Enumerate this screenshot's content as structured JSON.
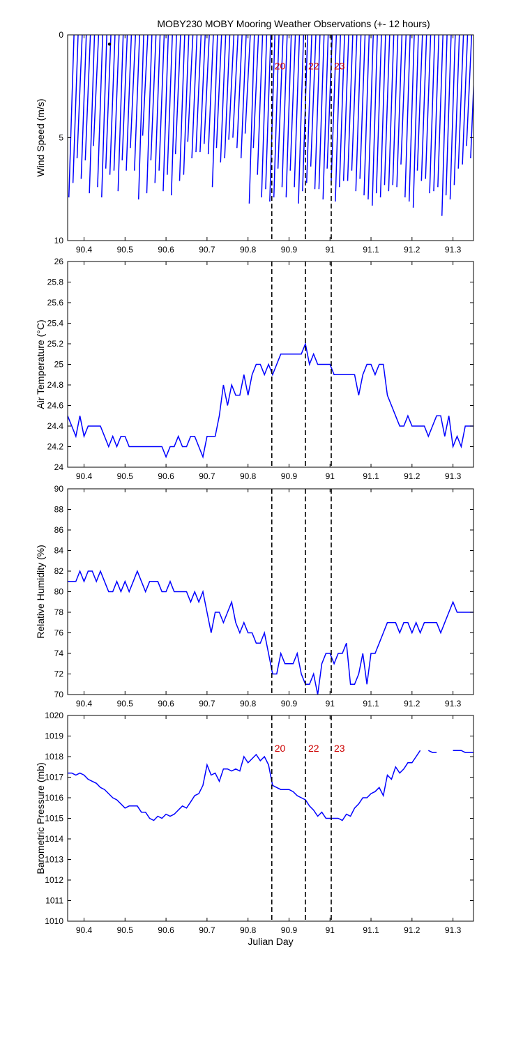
{
  "title": "MOBY230 MOBY Mooring Weather Observations (+- 12 hours)",
  "colors": {
    "series": "#0000ff",
    "marker_label": "#cc0000",
    "axes": "#000000",
    "background": "#ffffff"
  },
  "chart_data": [
    {
      "type": "quiver",
      "id": "wind",
      "ylabel": "Wind Speed (m/s)",
      "xlim": [
        90.36,
        91.35
      ],
      "ylim": [
        0,
        10
      ],
      "y_inverted": true,
      "xticks": [
        90.4,
        90.5,
        90.6,
        90.7,
        90.8,
        90.9,
        91,
        91.1,
        91.2,
        91.3
      ],
      "xtick_labels": [
        "90.4",
        "90.5",
        "90.6",
        "90.7",
        "90.8",
        "90.9",
        "91",
        "91.1",
        "91.2",
        "91.3"
      ],
      "yticks": [
        0,
        5,
        10
      ],
      "ytick_labels": [
        "0",
        "5",
        "10"
      ],
      "marker_lines": [
        90.858,
        90.94,
        91.003
      ],
      "marker_labels": [
        "20",
        "22",
        "23"
      ],
      "marker_label_y": 1.5,
      "vectors": [
        [
          90.363,
          7.9
        ],
        [
          90.373,
          7.2
        ],
        [
          90.383,
          6.0
        ],
        [
          90.393,
          7.0
        ],
        [
          90.403,
          6.1
        ],
        [
          90.413,
          7.7
        ],
        [
          90.423,
          5.4
        ],
        [
          90.433,
          7.4
        ],
        [
          90.443,
          7.9
        ],
        [
          90.453,
          6.5
        ],
        [
          90.463,
          6.8
        ],
        [
          90.473,
          6.6
        ],
        [
          90.483,
          7.6
        ],
        [
          90.493,
          6.1
        ],
        [
          90.503,
          6.6
        ],
        [
          90.513,
          5.5
        ],
        [
          90.523,
          6.6
        ],
        [
          90.533,
          8.0
        ],
        [
          90.543,
          4.9
        ],
        [
          90.553,
          7.7
        ],
        [
          90.563,
          6.1
        ],
        [
          90.573,
          7.2
        ],
        [
          90.583,
          6.6
        ],
        [
          90.593,
          7.6
        ],
        [
          90.603,
          6.8
        ],
        [
          90.613,
          7.8
        ],
        [
          90.623,
          5.8
        ],
        [
          90.633,
          7.1
        ],
        [
          90.643,
          6.8
        ],
        [
          90.653,
          5.2
        ],
        [
          90.663,
          6.0
        ],
        [
          90.673,
          5.7
        ],
        [
          90.683,
          5.7
        ],
        [
          90.693,
          5.3
        ],
        [
          90.703,
          5.8
        ],
        [
          90.713,
          7.4
        ],
        [
          90.723,
          5.5
        ],
        [
          90.733,
          6.2
        ],
        [
          90.743,
          6.0
        ],
        [
          90.753,
          5.1
        ],
        [
          90.763,
          5.0
        ],
        [
          90.773,
          5.5
        ],
        [
          90.783,
          6.0
        ],
        [
          90.793,
          4.8
        ],
        [
          90.803,
          8.2
        ],
        [
          90.813,
          5.5
        ],
        [
          90.823,
          6.8
        ],
        [
          90.833,
          7.9
        ],
        [
          90.843,
          7.5
        ],
        [
          90.853,
          8.1
        ],
        [
          90.863,
          7.9
        ],
        [
          90.873,
          6.5
        ],
        [
          90.883,
          7.4
        ],
        [
          90.893,
          7.9
        ],
        [
          90.903,
          6.6
        ],
        [
          90.913,
          7.4
        ],
        [
          90.923,
          8.2
        ],
        [
          90.933,
          7.6
        ],
        [
          90.943,
          7.2
        ],
        [
          90.953,
          6.4
        ],
        [
          90.963,
          7.5
        ],
        [
          90.973,
          7.5
        ],
        [
          90.983,
          8.0
        ],
        [
          90.993,
          6.5
        ],
        [
          91.003,
          7.1
        ],
        [
          91.013,
          8.1
        ],
        [
          91.023,
          7.4
        ],
        [
          91.033,
          7.1
        ],
        [
          91.043,
          7.1
        ],
        [
          91.053,
          6.6
        ],
        [
          91.063,
          7.6
        ],
        [
          91.073,
          7.0
        ],
        [
          91.083,
          7.8
        ],
        [
          91.093,
          8.0
        ],
        [
          91.103,
          8.3
        ],
        [
          91.113,
          7.7
        ],
        [
          91.123,
          7.9
        ],
        [
          91.133,
          7.3
        ],
        [
          91.143,
          7.6
        ],
        [
          91.153,
          7.3
        ],
        [
          91.163,
          7.4
        ],
        [
          91.173,
          6.3
        ],
        [
          91.183,
          7.9
        ],
        [
          91.193,
          8.1
        ],
        [
          91.203,
          8.4
        ],
        [
          91.213,
          6.6
        ],
        [
          91.223,
          7.1
        ],
        [
          91.233,
          7.0
        ],
        [
          91.243,
          7.7
        ],
        [
          91.253,
          7.6
        ],
        [
          91.263,
          7.4
        ],
        [
          91.273,
          8.8
        ],
        [
          91.283,
          7.8
        ],
        [
          91.293,
          8.0
        ],
        [
          91.303,
          7.3
        ],
        [
          91.313,
          6.5
        ],
        [
          91.323,
          6.3
        ],
        [
          91.333,
          5.4
        ],
        [
          91.343,
          6.0
        ]
      ],
      "vector_dx_days": 0.0125
    },
    {
      "type": "line",
      "id": "airtemp",
      "ylabel": "Air Temperature (°C)",
      "xlim": [
        90.36,
        91.35
      ],
      "ylim": [
        24,
        26
      ],
      "xticks": [
        90.4,
        90.5,
        90.6,
        90.7,
        90.8,
        90.9,
        91,
        91.1,
        91.2,
        91.3
      ],
      "xtick_labels": [
        "90.4",
        "90.5",
        "90.6",
        "90.7",
        "90.8",
        "90.9",
        "91",
        "91.1",
        "91.2",
        "91.3"
      ],
      "yticks": [
        24,
        24.2,
        24.4,
        24.6,
        24.8,
        25,
        25.2,
        25.4,
        25.6,
        25.8,
        26
      ],
      "ytick_labels": [
        "24",
        "24.2",
        "24.4",
        "24.6",
        "24.8",
        "25",
        "25.2",
        "25.4",
        "25.6",
        "25.8",
        "26"
      ],
      "marker_lines": [
        90.858,
        90.94,
        91.003
      ],
      "x": [
        90.36,
        90.37,
        90.38,
        90.39,
        90.4,
        90.41,
        90.42,
        90.43,
        90.44,
        90.45,
        90.46,
        90.47,
        90.48,
        90.49,
        90.5,
        90.51,
        90.52,
        90.53,
        90.54,
        90.55,
        90.56,
        90.57,
        90.58,
        90.59,
        90.6,
        90.61,
        90.62,
        90.63,
        90.64,
        90.65,
        90.66,
        90.67,
        90.68,
        90.69,
        90.7,
        90.71,
        90.72,
        90.73,
        90.74,
        90.75,
        90.76,
        90.77,
        90.78,
        90.79,
        90.8,
        90.81,
        90.82,
        90.83,
        90.84,
        90.85,
        90.86,
        90.87,
        90.88,
        90.89,
        90.9,
        90.91,
        90.92,
        90.93,
        90.94,
        90.95,
        90.96,
        90.97,
        90.98,
        90.99,
        91.0,
        91.01,
        91.02,
        91.03,
        91.04,
        91.05,
        91.06,
        91.07,
        91.08,
        91.09,
        91.1,
        91.11,
        91.12,
        91.13,
        91.14,
        91.15,
        91.16,
        91.17,
        91.18,
        91.19,
        91.2,
        91.21,
        91.22,
        91.23,
        91.24,
        91.25,
        91.26,
        91.27,
        91.28,
        91.29,
        91.3,
        91.31,
        91.32,
        91.33,
        91.34,
        91.35
      ],
      "y": [
        24.5,
        24.4,
        24.3,
        24.5,
        24.3,
        24.4,
        24.4,
        24.4,
        24.4,
        24.3,
        24.2,
        24.3,
        24.2,
        24.3,
        24.3,
        24.2,
        24.2,
        24.2,
        24.2,
        24.2,
        24.2,
        24.2,
        24.2,
        24.2,
        24.1,
        24.2,
        24.2,
        24.3,
        24.2,
        24.2,
        24.3,
        24.3,
        24.2,
        24.1,
        24.3,
        24.3,
        24.3,
        24.5,
        24.8,
        24.6,
        24.8,
        24.7,
        24.7,
        24.9,
        24.7,
        24.9,
        25.0,
        25.0,
        24.9,
        25.0,
        24.9,
        25.0,
        25.1,
        25.1,
        25.1,
        25.1,
        25.1,
        25.1,
        25.2,
        25.0,
        25.1,
        25.0,
        25.0,
        25.0,
        25.0,
        24.9,
        24.9,
        24.9,
        24.9,
        24.9,
        24.9,
        24.7,
        24.9,
        25.0,
        25.0,
        24.9,
        25.0,
        25.0,
        24.7,
        24.6,
        24.5,
        24.4,
        24.4,
        24.5,
        24.4,
        24.4,
        24.4,
        24.4,
        24.3,
        24.4,
        24.5,
        24.5,
        24.3,
        24.5,
        24.2,
        24.3,
        24.2,
        24.4,
        24.4,
        24.4
      ]
    },
    {
      "type": "line",
      "id": "humidity",
      "ylabel": "Relative Humidity (%)",
      "xlim": [
        90.36,
        91.35
      ],
      "ylim": [
        70,
        90
      ],
      "xticks": [
        90.4,
        90.5,
        90.6,
        90.7,
        90.8,
        90.9,
        91,
        91.1,
        91.2,
        91.3
      ],
      "xtick_labels": [
        "90.4",
        "90.5",
        "90.6",
        "90.7",
        "90.8",
        "90.9",
        "91",
        "91.1",
        "91.2",
        "91.3"
      ],
      "yticks": [
        70,
        72,
        74,
        76,
        78,
        80,
        82,
        84,
        86,
        88,
        90
      ],
      "ytick_labels": [
        "70",
        "72",
        "74",
        "76",
        "78",
        "80",
        "82",
        "84",
        "86",
        "88",
        "90"
      ],
      "marker_lines": [
        90.858,
        90.94,
        91.003
      ],
      "x": [
        90.36,
        90.37,
        90.38,
        90.39,
        90.4,
        90.41,
        90.42,
        90.43,
        90.44,
        90.45,
        90.46,
        90.47,
        90.48,
        90.49,
        90.5,
        90.51,
        90.52,
        90.53,
        90.54,
        90.55,
        90.56,
        90.57,
        90.58,
        90.59,
        90.6,
        90.61,
        90.62,
        90.63,
        90.64,
        90.65,
        90.66,
        90.67,
        90.68,
        90.69,
        90.7,
        90.71,
        90.72,
        90.73,
        90.74,
        90.75,
        90.76,
        90.77,
        90.78,
        90.79,
        90.8,
        90.81,
        90.82,
        90.83,
        90.84,
        90.85,
        90.86,
        90.87,
        90.88,
        90.89,
        90.9,
        90.91,
        90.92,
        90.93,
        90.94,
        90.95,
        90.96,
        90.97,
        90.98,
        90.99,
        91.0,
        91.01,
        91.02,
        91.03,
        91.04,
        91.05,
        91.06,
        91.07,
        91.08,
        91.09,
        91.1,
        91.11,
        91.12,
        91.13,
        91.14,
        91.15,
        91.16,
        91.17,
        91.18,
        91.19,
        91.2,
        91.21,
        91.22,
        91.23,
        91.24,
        91.25,
        91.26,
        91.27,
        91.28,
        91.29,
        91.3,
        91.31,
        91.32,
        91.33,
        91.34,
        91.35
      ],
      "y": [
        81,
        81,
        81,
        82,
        81,
        82,
        82,
        81,
        82,
        81,
        80,
        80,
        81,
        80,
        81,
        80,
        81,
        82,
        81,
        80,
        81,
        81,
        81,
        80,
        80,
        81,
        80,
        80,
        80,
        80,
        79,
        80,
        79,
        80,
        78,
        76,
        78,
        78,
        77,
        78,
        79,
        77,
        76,
        77,
        76,
        76,
        75,
        75,
        76,
        74,
        72,
        72,
        74,
        73,
        73,
        73,
        74,
        72,
        71,
        71,
        72,
        70,
        73,
        74,
        74,
        73,
        74,
        74,
        75,
        71,
        71,
        72,
        74,
        71,
        74,
        74,
        75,
        76,
        77,
        77,
        77,
        76,
        77,
        77,
        76,
        77,
        76,
        77,
        77,
        77,
        77,
        76,
        77,
        78,
        79,
        78,
        78,
        78,
        78,
        78
      ]
    },
    {
      "type": "line",
      "id": "pressure",
      "ylabel": "Barometric Pressure (mb)",
      "xlabel": "Julian Day",
      "xlim": [
        90.36,
        91.35
      ],
      "ylim": [
        1010,
        1020
      ],
      "xticks": [
        90.4,
        90.5,
        90.6,
        90.7,
        90.8,
        90.9,
        91,
        91.1,
        91.2,
        91.3
      ],
      "xtick_labels": [
        "90.4",
        "90.5",
        "90.6",
        "90.7",
        "90.8",
        "90.9",
        "91",
        "91.1",
        "91.2",
        "91.3"
      ],
      "yticks": [
        1010,
        1011,
        1012,
        1013,
        1014,
        1015,
        1016,
        1017,
        1018,
        1019,
        1020
      ],
      "ytick_labels": [
        "1010",
        "1011",
        "1012",
        "1013",
        "1014",
        "1015",
        "1016",
        "1017",
        "1018",
        "1019",
        "1020"
      ],
      "marker_lines": [
        90.858,
        90.94,
        91.003
      ],
      "marker_labels": [
        "20",
        "22",
        "23"
      ],
      "marker_label_y": 1018.4,
      "x": [
        90.36,
        90.37,
        90.38,
        90.39,
        90.4,
        90.41,
        90.42,
        90.43,
        90.44,
        90.45,
        90.46,
        90.47,
        90.48,
        90.49,
        90.5,
        90.51,
        90.52,
        90.53,
        90.54,
        90.55,
        90.56,
        90.57,
        90.58,
        90.59,
        90.6,
        90.61,
        90.62,
        90.63,
        90.64,
        90.65,
        90.66,
        90.67,
        90.68,
        90.69,
        90.7,
        90.71,
        90.72,
        90.73,
        90.74,
        90.75,
        90.76,
        90.77,
        90.78,
        90.79,
        90.8,
        90.81,
        90.82,
        90.83,
        90.84,
        90.85,
        90.86,
        90.87,
        90.88,
        90.89,
        90.9,
        90.91,
        90.92,
        90.93,
        90.94,
        90.95,
        90.96,
        90.97,
        90.98,
        90.99,
        91.0,
        91.01,
        91.02,
        91.03,
        91.04,
        91.05,
        91.06,
        91.07,
        91.08,
        91.09,
        91.1,
        91.11,
        91.12,
        91.13,
        91.14,
        91.15,
        91.16,
        91.17,
        91.18,
        91.19,
        91.2,
        91.21,
        91.22,
        91.23,
        91.24,
        91.25,
        91.26,
        91.27,
        91.28,
        91.29,
        91.3
      ],
      "y": [
        1017.2,
        1017.2,
        1017.1,
        1017.2,
        1017.1,
        1016.9,
        1016.8,
        1016.7,
        1016.5,
        1016.4,
        1016.2,
        1016.0,
        1015.9,
        1015.7,
        1015.5,
        1015.6,
        1015.6,
        1015.6,
        1015.3,
        1015.3,
        1015.0,
        1014.9,
        1015.1,
        1015.0,
        1015.2,
        1015.1,
        1015.2,
        1015.4,
        1015.6,
        1015.5,
        1015.8,
        1016.1,
        1016.2,
        1016.6,
        1017.6,
        1017.1,
        1017.2,
        1016.8,
        1017.4,
        1017.4,
        1017.3,
        1017.4,
        1017.3,
        1018.0,
        1017.7,
        1017.9,
        1018.1,
        1017.8,
        1018.0,
        1017.6,
        1016.6,
        1016.5,
        1016.4,
        1016.4,
        1016.4,
        1016.3,
        1016.1,
        1016.0,
        1015.9,
        1015.6,
        1015.4,
        1015.1,
        1015.3,
        1015.0,
        1015.0,
        1015.0,
        1015.0,
        1014.9,
        1015.2,
        1015.1,
        1015.5,
        1015.7,
        1016.0,
        1016.0,
        1016.2,
        1016.3,
        1016.5,
        1016.1,
        1017.1,
        1016.9,
        1017.5,
        1017.2,
        1017.4,
        1017.7,
        1017.7,
        1018.0,
        1018.3,
        null,
        1018.3,
        1018.2,
        1018.2,
        null,
        null,
        null,
        null
      ],
      "x_fixed_tail": [
        91.3,
        91.32,
        91.33,
        91.35
      ],
      "y_fixed_tail": [
        1018.3,
        1018.3,
        1018.2,
        1018.2
      ]
    }
  ]
}
